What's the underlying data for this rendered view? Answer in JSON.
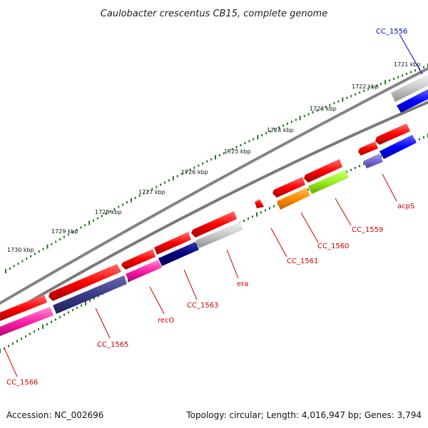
{
  "title": "Caulobacter crescentus CB15, complete genome",
  "footer": {
    "accession": "Accession: NC_002696",
    "topology": "Topology: circular; Length: 4,016,947 bp; Genes: 3,794"
  },
  "kbp_labels": [
    "1721 kbp",
    "1722 kbp",
    "1723 kbp",
    "1724 kbp",
    "1725 kbp",
    "1726 kbp",
    "1727 kbp",
    "1728 kbp",
    "1729 kbp",
    "1730 kbp"
  ],
  "gene_labels": [
    "CC_1556",
    "acpS",
    "CC_1559",
    "CC_1560",
    "CC_1561",
    "era",
    "CC_1563",
    "recO",
    "CC_1565",
    "CC_1566"
  ],
  "colors": {
    "red_gene": "#ff0000",
    "red_label": "#cc0000",
    "blue_label": "#0000cc",
    "backbone": "#808080",
    "tick": "#1a7a1a"
  }
}
